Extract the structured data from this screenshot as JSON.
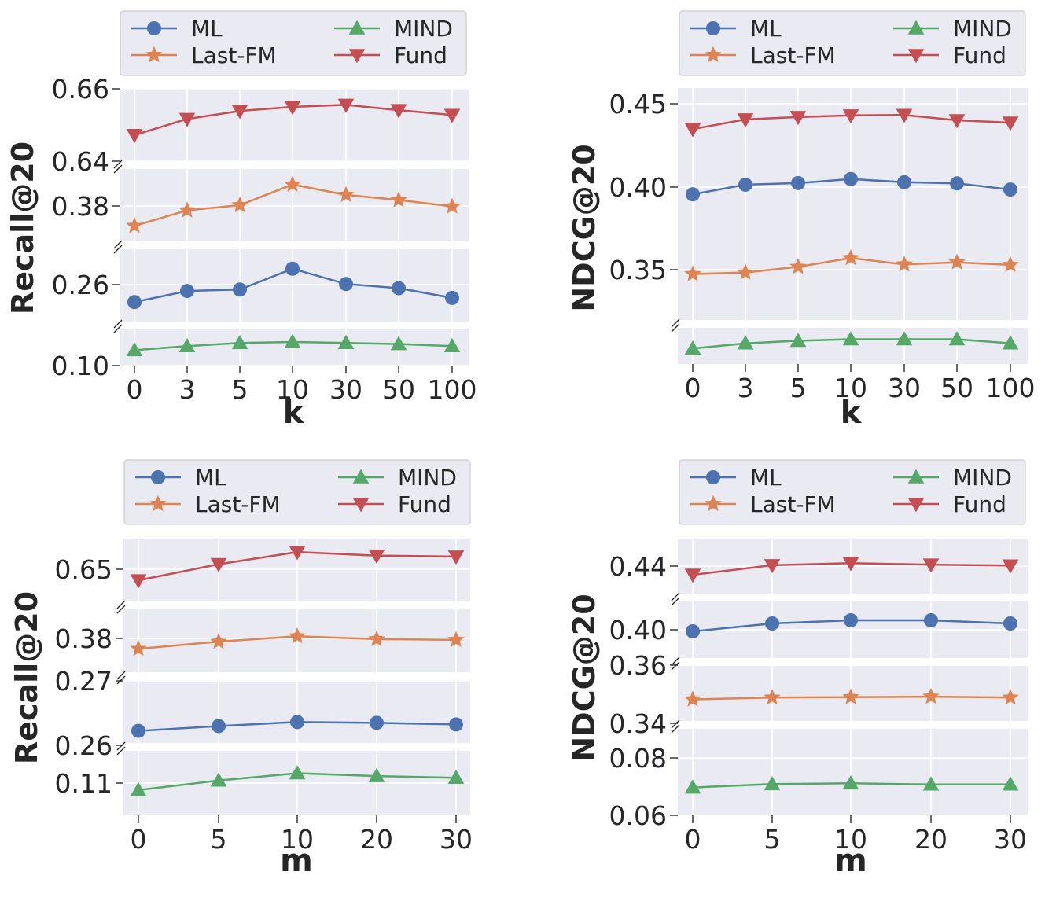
{
  "legend": {
    "ML": "ML",
    "LastFM": "Last-FM",
    "MIND": "MIND",
    "Fund": "Fund"
  },
  "colors": {
    "ML": "#4c72b0",
    "Last-FM": "#dd8452",
    "MIND": "#55a868",
    "Fund": "#c44e52",
    "panel_bg": "#eaeaf2",
    "grid": "#ffffff"
  },
  "chart_data": [
    {
      "type": "line",
      "xlabel": "k",
      "ylabel": "Recall@20",
      "categories": [
        "0",
        "3",
        "5",
        "10",
        "30",
        "50",
        "100"
      ],
      "legend_position": "top",
      "grid": true,
      "broken_axis": true,
      "series": [
        {
          "name": "ML",
          "marker": "circle",
          "values": [
            0.259,
            0.263,
            0.2635,
            0.271,
            0.2655,
            0.264,
            0.2605
          ]
        },
        {
          "name": "Last-FM",
          "marker": "star",
          "values": [
            0.368,
            0.374,
            0.376,
            0.384,
            0.38,
            0.378,
            0.3755
          ]
        },
        {
          "name": "MIND",
          "marker": "triangle-up",
          "values": [
            0.1035,
            0.1055,
            0.107,
            0.1075,
            0.107,
            0.1065,
            0.1055
          ]
        },
        {
          "name": "Fund",
          "marker": "triangle-down",
          "values": [
            0.6465,
            0.6505,
            0.6525,
            0.6535,
            0.654,
            0.6527,
            0.6515
          ]
        }
      ]
    },
    {
      "type": "line",
      "xlabel": "k",
      "ylabel": "NDCG@20",
      "categories": [
        "0",
        "3",
        "5",
        "10",
        "30",
        "50",
        "100"
      ],
      "legend_position": "top",
      "grid": true,
      "broken_axis": true,
      "series": [
        {
          "name": "ML",
          "marker": "circle",
          "values": [
            0.39,
            0.396,
            0.397,
            0.3995,
            0.3975,
            0.3968,
            0.393
          ]
        },
        {
          "name": "Last-FM",
          "marker": "star",
          "values": [
            0.3405,
            0.3415,
            0.345,
            0.3505,
            0.3465,
            0.3478,
            0.3462
          ]
        },
        {
          "name": "MIND",
          "marker": "triangle-up",
          "values": [
            0.0775,
            0.0785,
            0.079,
            0.0793,
            0.0793,
            0.0793,
            0.0785
          ]
        },
        {
          "name": "Fund",
          "marker": "triangle-down",
          "values": [
            0.4305,
            0.4365,
            0.438,
            0.439,
            0.4393,
            0.436,
            0.4345
          ]
        }
      ]
    },
    {
      "type": "line",
      "xlabel": "m",
      "ylabel": "Recall@20",
      "categories": [
        "0",
        "5",
        "10",
        "20",
        "30"
      ],
      "legend_position": "top",
      "grid": true,
      "broken_axis": true,
      "series": [
        {
          "name": "ML",
          "marker": "circle",
          "values": [
            0.2612,
            0.2618,
            0.2623,
            0.2622,
            0.262
          ]
        },
        {
          "name": "Last-FM",
          "marker": "star",
          "values": [
            0.3765,
            0.3785,
            0.38,
            0.3792,
            0.379
          ]
        },
        {
          "name": "MIND",
          "marker": "triangle-up",
          "values": [
            0.1055,
            0.1072,
            0.1085,
            0.108,
            0.1077
          ]
        },
        {
          "name": "Fund",
          "marker": "triangle-down",
          "values": [
            0.6502,
            0.6538,
            0.6565,
            0.6557,
            0.6555
          ]
        }
      ]
    },
    {
      "type": "line",
      "xlabel": "m",
      "ylabel": "NDCG@20",
      "categories": [
        "0",
        "5",
        "10",
        "20",
        "30"
      ],
      "legend_position": "top",
      "grid": true,
      "broken_axis": true,
      "series": [
        {
          "name": "ML",
          "marker": "circle",
          "values": [
            0.3905,
            0.393,
            0.394,
            0.394,
            0.393
          ]
        },
        {
          "name": "Last-FM",
          "marker": "star",
          "values": [
            0.3527,
            0.3531,
            0.3532,
            0.3533,
            0.3531
          ]
        },
        {
          "name": "MIND",
          "marker": "triangle-up",
          "values": [
            0.0674,
            0.0683,
            0.0685,
            0.0682,
            0.0682
          ]
        },
        {
          "name": "Fund",
          "marker": "triangle-down",
          "values": [
            0.4345,
            0.4378,
            0.4385,
            0.438,
            0.4377
          ]
        }
      ]
    }
  ]
}
